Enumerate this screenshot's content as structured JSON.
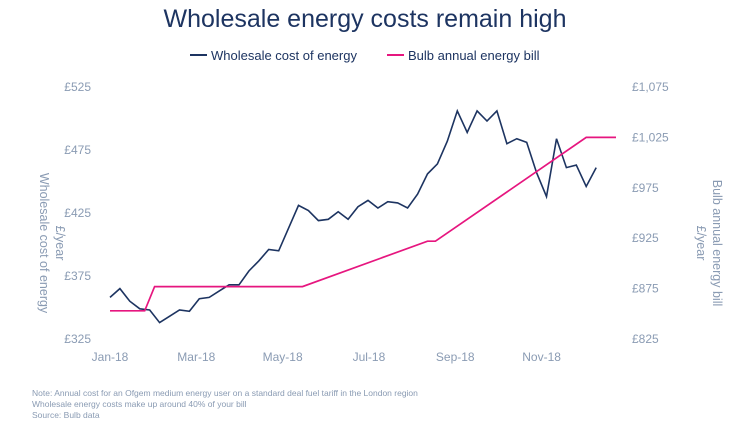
{
  "chart_data": {
    "type": "line",
    "title": "Wholesale energy costs remain high",
    "xlabel": "",
    "ylabel_left": [
      "Wholesale cost of energy",
      "£/year"
    ],
    "ylabel_right": [
      "Bulb annual energy bill",
      "£/year"
    ],
    "x_ticks": [
      "Jan-18",
      "Mar-18",
      "May-18",
      "Jul-18",
      "Sep-18",
      "Nov-18"
    ],
    "y_left_ticks": [
      "£325",
      "£375",
      "£425",
      "£475",
      "£525"
    ],
    "y_right_ticks": [
      "£825",
      "£875",
      "£925",
      "£975",
      "£1,025",
      "£1,075"
    ],
    "ylim_left": [
      325,
      525
    ],
    "ylim_right": [
      825,
      1075
    ],
    "x_range": [
      0,
      51
    ],
    "series": [
      {
        "name": "Wholesale cost of energy",
        "axis": "left",
        "color": "#1d3461",
        "x": [
          0,
          1,
          2,
          3,
          4,
          5,
          6,
          7,
          8,
          9,
          10,
          11,
          12,
          13,
          14,
          15,
          16,
          17,
          18,
          19,
          20,
          21,
          22,
          23,
          24,
          25,
          26,
          27,
          28,
          29,
          30,
          31,
          32,
          33,
          34,
          35,
          36,
          37,
          38,
          39,
          40,
          41,
          42,
          43,
          44,
          45,
          46,
          47,
          48,
          49,
          50,
          51
        ],
        "y": [
          358,
          365,
          355,
          349,
          348,
          338,
          343,
          348,
          347,
          357,
          358,
          363,
          368,
          368,
          379,
          387,
          396,
          395,
          413,
          431,
          427,
          419,
          420,
          426,
          420,
          430,
          435,
          429,
          434,
          433,
          429,
          440,
          456,
          464,
          482,
          506,
          489,
          506,
          498,
          506,
          480,
          484,
          481,
          457,
          438,
          484,
          461,
          463,
          446,
          461,
          null,
          null
        ]
      },
      {
        "name": "Bulb annual energy bill",
        "axis": "right",
        "color": "#e6167f",
        "x": [
          0,
          3.5,
          4.5,
          19,
          19.4,
          32,
          32.8,
          48,
          51
        ],
        "y": [
          853,
          853,
          877,
          877,
          877,
          922,
          922,
          1025,
          1025
        ]
      }
    ],
    "legend_position": "top-center",
    "grid": false
  },
  "notes": [
    "Note: Annual cost for an Ofgem medium energy user on a standard deal fuel tariff in the London region",
    "Wholesale energy costs make up around 40% of your bill",
    "Source: Bulb data"
  ]
}
